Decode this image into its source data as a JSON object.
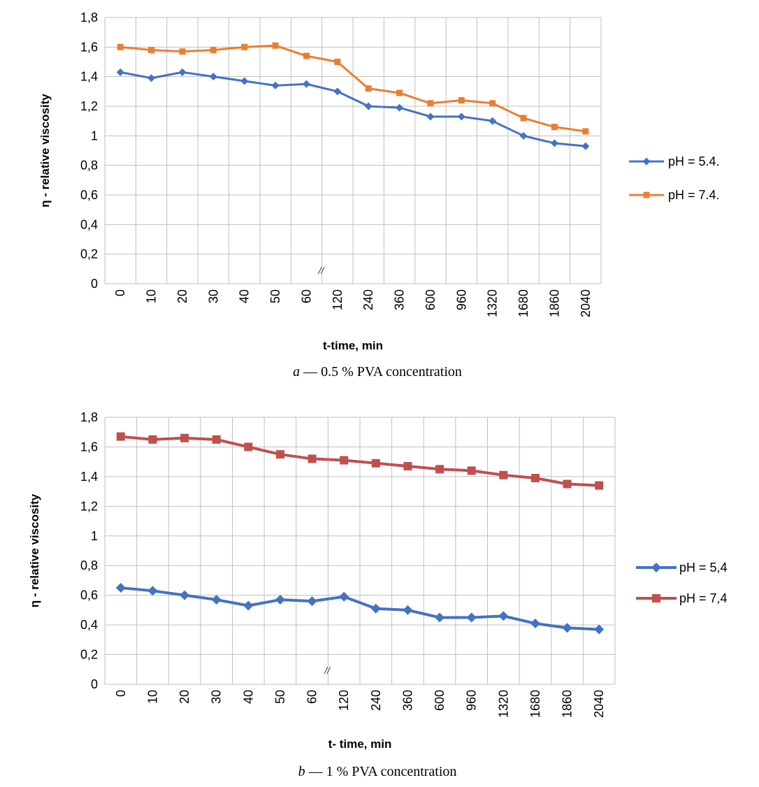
{
  "figure": {
    "break_mark": "//"
  },
  "chart_data": [
    {
      "type": "line",
      "categories": [
        "0",
        "10",
        "20",
        "30",
        "40",
        "50",
        "60",
        "120",
        "240",
        "360",
        "600",
        "960",
        "1320",
        "1680",
        "1860",
        "2040"
      ],
      "xlabel": "t-time, min",
      "ylabel": "η - relative viscosity",
      "ylim": [
        0,
        1.8
      ],
      "yticks": [
        "0",
        "0,2",
        "0,4",
        "0,6",
        "0,8",
        "1",
        "1,2",
        "1,4",
        "1,6",
        "1,8"
      ],
      "grid": true,
      "legend_position": "right",
      "caption_letter": "a",
      "caption_text": " — 0.5 % PVA concentration",
      "series": [
        {
          "name": "pH = 5.4.",
          "color": "#4472C4",
          "marker": "diamond",
          "values": [
            1.43,
            1.39,
            1.43,
            1.4,
            1.37,
            1.34,
            1.35,
            1.3,
            1.2,
            1.19,
            1.13,
            1.13,
            1.1,
            1.0,
            0.95,
            0.93
          ]
        },
        {
          "name": "pH = 7.4.",
          "color": "#ED7D31",
          "marker": "square",
          "values": [
            1.6,
            1.58,
            1.57,
            1.58,
            1.6,
            1.61,
            1.54,
            1.5,
            1.32,
            1.29,
            1.22,
            1.24,
            1.22,
            1.12,
            1.06,
            1.03
          ]
        }
      ]
    },
    {
      "type": "line",
      "categories": [
        "0",
        "10",
        "20",
        "30",
        "40",
        "50",
        "60",
        "120",
        "240",
        "360",
        "600",
        "960",
        "1320",
        "1680",
        "1860",
        "2040"
      ],
      "xlabel": "t- time, min",
      "ylabel": "η - relative viscosity",
      "ylim": [
        0,
        1.8
      ],
      "yticks": [
        "0",
        "0,2",
        "0,4",
        "0,6",
        "0,8",
        "1",
        "1,2",
        "1,4",
        "1,6",
        "1,8"
      ],
      "grid": true,
      "legend_position": "right",
      "caption_letter": "b",
      "caption_text": " — 1 % PVA concentration",
      "series": [
        {
          "name": "pH = 5,4",
          "color": "#4472C4",
          "marker": "diamond",
          "values": [
            0.65,
            0.63,
            0.6,
            0.57,
            0.53,
            0.57,
            0.56,
            0.59,
            0.51,
            0.5,
            0.45,
            0.45,
            0.46,
            0.41,
            0.38,
            0.37
          ]
        },
        {
          "name": "pH = 7,4",
          "color": "#C0504D",
          "marker": "square",
          "values": [
            1.67,
            1.65,
            1.66,
            1.65,
            1.6,
            1.55,
            1.52,
            1.51,
            1.49,
            1.47,
            1.45,
            1.44,
            1.41,
            1.39,
            1.35,
            1.34
          ]
        }
      ]
    }
  ]
}
